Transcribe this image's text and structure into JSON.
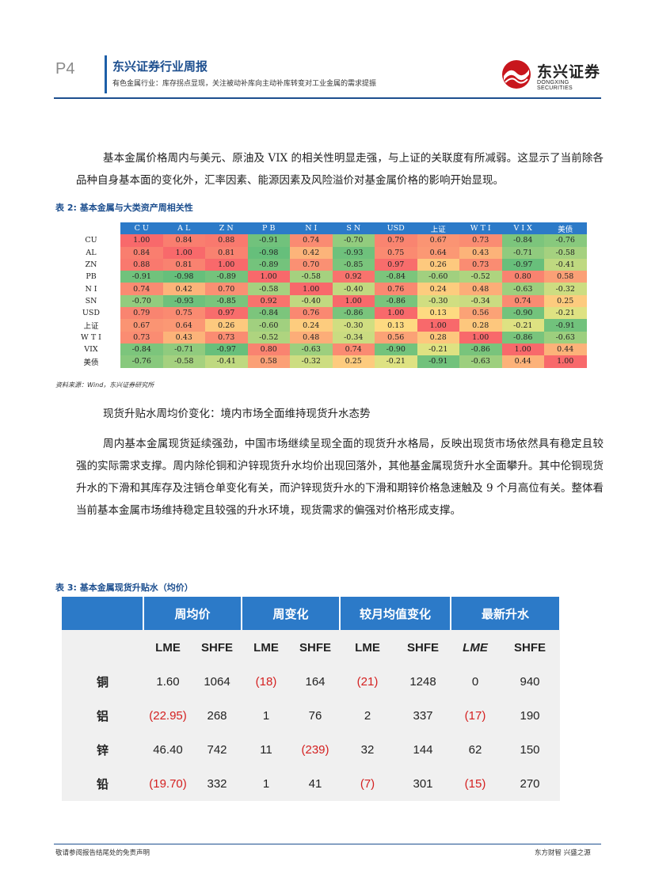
{
  "header": {
    "page_num": "P4",
    "title": "东兴证券行业周报",
    "subtitle": "有色金属行业：库存拐点显现，关注被动补库向主动补库转变对工业金属的需求提振",
    "logo_cn": "东兴证券",
    "logo_en": "DONGXING SECURITIES",
    "brand_color": "#c8161d"
  },
  "para1": "基本金属价格周内与美元、原油及 VIX 的相关性明显走强，与上证的关联度有所减弱。这显示了当前除各品种自身基本面的变化外，汇率因素、能源因素及风险溢价对基金属价格的影响开始显现。",
  "table2": {
    "caption": "表 2: 基本金属与大类资产周相关性",
    "headers": [
      "CU",
      "AL",
      "ZN",
      "PB",
      "NI",
      "SN",
      "USD",
      "上证",
      "WTI",
      "VIX",
      "美债"
    ],
    "display_headers": [
      "C U",
      "A L",
      "Z N",
      "P B",
      "N I",
      "S N",
      "USD",
      "上证",
      "W T I",
      "V I X",
      "美债"
    ],
    "row_labels": [
      "CU",
      "AL",
      "ZN",
      "PB",
      "N I",
      "SN",
      "USD",
      "上证",
      "W T I",
      "VIX",
      "美债"
    ],
    "values": [
      [
        "1.00",
        "0.84",
        "0.88",
        "-0.91",
        "0.74",
        "-0.70",
        "0.79",
        "0.67",
        "0.73",
        "-0.84",
        "-0.76"
      ],
      [
        "0.84",
        "1.00",
        "0.81",
        "-0.98",
        "0.42",
        "-0.93",
        "0.75",
        "0.64",
        "0.43",
        "-0.71",
        "-0.58"
      ],
      [
        "0.88",
        "0.81",
        "1.00",
        "-0.89",
        "0.70",
        "-0.85",
        "0.97",
        "0.26",
        "0.73",
        "-0.97",
        "-0.41"
      ],
      [
        "-0.91",
        "-0.98",
        "-0.89",
        "1.00",
        "-0.58",
        "0.92",
        "-0.84",
        "-0.60",
        "-0.52",
        "0.80",
        "0.58"
      ],
      [
        "0.74",
        "0.42",
        "0.70",
        "-0.58",
        "1.00",
        "-0.40",
        "0.76",
        "0.24",
        "0.48",
        "-0.63",
        "-0.32"
      ],
      [
        "-0.70",
        "-0.93",
        "-0.85",
        "0.92",
        "-0.40",
        "1.00",
        "-0.86",
        "-0.30",
        "-0.34",
        "0.74",
        "0.25"
      ],
      [
        "0.79",
        "0.75",
        "0.97",
        "-0.84",
        "0.76",
        "-0.86",
        "1.00",
        "0.13",
        "0.56",
        "-0.90",
        "-0.21"
      ],
      [
        "0.67",
        "0.64",
        "0.26",
        "-0.60",
        "0.24",
        "-0.30",
        "0.13",
        "1.00",
        "0.28",
        "-0.21",
        "-0.91"
      ],
      [
        "0.73",
        "0.43",
        "0.73",
        "-0.52",
        "0.48",
        "-0.34",
        "0.56",
        "0.28",
        "1.00",
        "-0.86",
        "-0.63"
      ],
      [
        "-0.84",
        "-0.71",
        "-0.97",
        "0.80",
        "-0.63",
        "0.74",
        "-0.90",
        "-0.21",
        "-0.86",
        "1.00",
        "0.44"
      ],
      [
        "-0.76",
        "-0.58",
        "-0.41",
        "0.58",
        "-0.32",
        "0.25",
        "-0.21",
        "-0.91",
        "-0.63",
        "0.44",
        "1.00"
      ]
    ],
    "colors": {
      "low": "#63be7b",
      "mid": "#ffeb84",
      "high": "#f8696b",
      "header": "#2c7ac8"
    },
    "source": "资料来源：Wind，东兴证券研究所"
  },
  "heading2": "现货升贴水周均价变化：境内市场全面维持现货升水态势",
  "para2": "周内基本金属现货延续强劲，中国市场继续呈现全面的现货升水格局，反映出现货市场依然具有稳定且较强的实际需求支撑。周内除伦铜和沪锌现货升水均价出现回落外，其他基金属现货升水全面攀升。其中伦铜现货升水的下滑和其库存及注销仓单变化有关，而沪锌现货升水的下滑和期锌价格急速触及 9 个月高位有关。整体看当前基本金属市场维持稳定且较强的升水环境，现货需求的偏强对价格形成支撑。",
  "table3": {
    "caption": "表 3: 基本金属现货升贴水（均价）",
    "groups": [
      "周均价",
      "周变化",
      "较月均值变化",
      "最新升水"
    ],
    "sub_headers": [
      "LME",
      "SHFE",
      "LME",
      "SHFE",
      "LME",
      "SHFE",
      "LME",
      "SHFE"
    ],
    "rows": [
      {
        "label": "铜",
        "cells": [
          "1.60",
          "1064",
          "(18)",
          "164",
          "(21)",
          "1248",
          "0",
          "940"
        ]
      },
      {
        "label": "铝",
        "cells": [
          "(22.95)",
          "268",
          "1",
          "76",
          "2",
          "337",
          "(17)",
          "190"
        ]
      },
      {
        "label": "锌",
        "cells": [
          "46.40",
          "742",
          "11",
          "(239)",
          "32",
          "144",
          "62",
          "150"
        ]
      },
      {
        "label": "铅",
        "cells": [
          "(19.70)",
          "332",
          "1",
          "41",
          "(7)",
          "301",
          "(15)",
          "270"
        ]
      }
    ],
    "negative_color": "#d42020"
  },
  "footer": {
    "left": "敬请参阅报告结尾处的免责声明",
    "right": "东方财智 兴盛之源"
  }
}
